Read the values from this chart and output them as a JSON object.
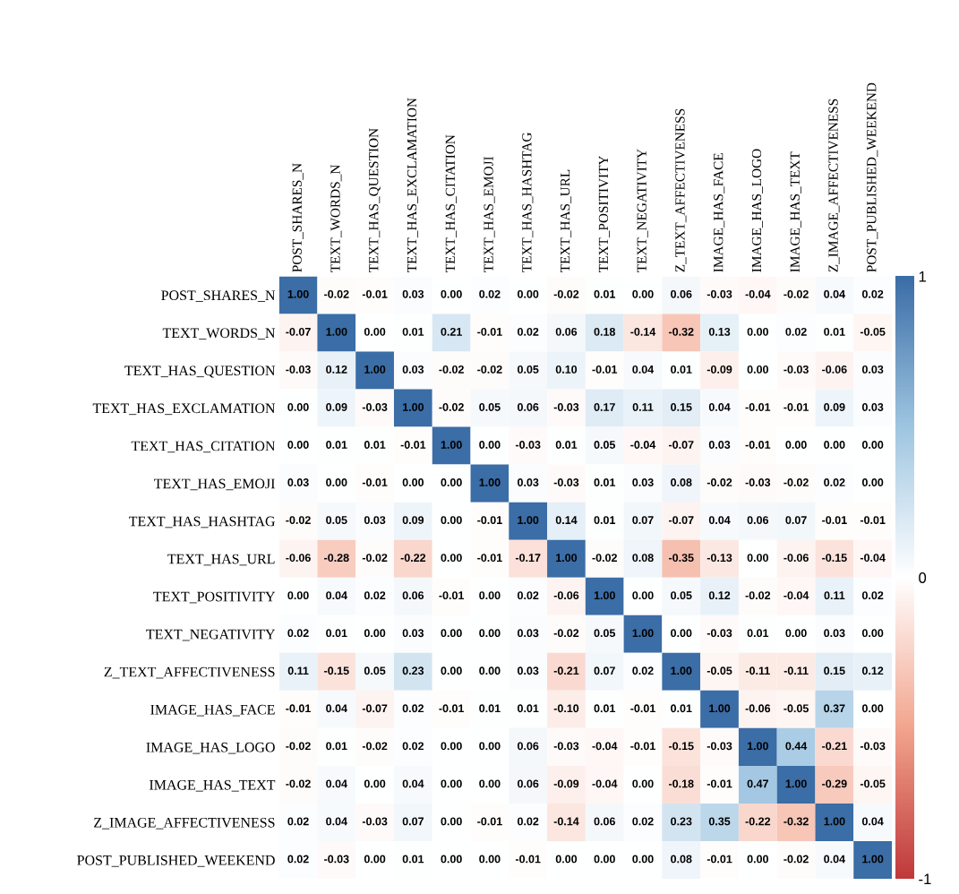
{
  "chart_data": {
    "type": "heatmap",
    "categories": [
      "POST_SHARES_N",
      "TEXT_WORDS_N",
      "TEXT_HAS_QUESTION",
      "TEXT_HAS_EXCLAMATION",
      "TEXT_HAS_CITATION",
      "TEXT_HAS_EMOJI",
      "TEXT_HAS_HASHTAG",
      "TEXT_HAS_URL",
      "TEXT_POSITIVITY",
      "TEXT_NEGATIVITY",
      "Z_TEXT_AFFECTIVENESS",
      "IMAGE_HAS_FACE",
      "IMAGE_HAS_LOGO",
      "IMAGE_HAS_TEXT",
      "Z_IMAGE_AFFECTIVENESS",
      "POST_PUBLISHED_WEEKEND"
    ],
    "y_categories": [
      "POST_SHARES_N",
      "TEXT_WORDS_N",
      "TEXT_HAS_QUESTION",
      "TEXT_HAS_EXCLAMATION",
      "TEXT_HAS_CITATION",
      "TEXT_HAS_EMOJI",
      "TEXT_HAS_HASHTAG",
      "TEXT_HAS_URL",
      "TEXT_POSITIVITY",
      "TEXT_NEGATIVITY",
      "Z_TEXT_AFFECTIVENESS",
      "IMAGE_HAS_FACE",
      "IMAGE_HAS_LOGO",
      "IMAGE_HAS_TEXT",
      "Z_IMAGE_AFFECTIVENESS",
      "POST_PUBLISHED_WEEKEND"
    ],
    "cells": [
      [
        1.0,
        -0.02,
        -0.01,
        0.03,
        0.0,
        0.02,
        0.0,
        -0.02,
        0.01,
        0.0,
        0.06,
        -0.03,
        -0.04,
        -0.02,
        0.04,
        0.02
      ],
      [
        -0.07,
        1.0,
        0.0,
        0.01,
        0.21,
        -0.01,
        0.02,
        0.06,
        0.18,
        -0.14,
        -0.32,
        0.13,
        0.0,
        0.02,
        0.01,
        -0.05
      ],
      [
        -0.03,
        0.12,
        1.0,
        0.03,
        -0.02,
        -0.02,
        0.05,
        0.1,
        -0.01,
        0.04,
        0.01,
        -0.09,
        0.0,
        -0.03,
        -0.06,
        0.03
      ],
      [
        0.0,
        0.09,
        -0.03,
        1.0,
        -0.02,
        0.05,
        0.06,
        -0.03,
        0.17,
        0.11,
        0.15,
        0.04,
        -0.01,
        -0.01,
        0.09,
        0.03
      ],
      [
        0.0,
        0.01,
        0.01,
        -0.01,
        1.0,
        0.0,
        -0.03,
        0.01,
        0.05,
        -0.04,
        -0.07,
        0.03,
        -0.01,
        0.0,
        0.0,
        0.0
      ],
      [
        0.03,
        0.0,
        -0.01,
        0.0,
        0.0,
        1.0,
        0.03,
        -0.03,
        0.01,
        0.03,
        0.08,
        -0.02,
        -0.03,
        -0.02,
        0.02,
        0.0
      ],
      [
        -0.02,
        0.05,
        0.03,
        0.09,
        0.0,
        -0.01,
        1.0,
        0.14,
        0.01,
        0.07,
        -0.07,
        0.04,
        0.06,
        0.07,
        -0.01,
        -0.01
      ],
      [
        -0.06,
        -0.28,
        -0.02,
        -0.22,
        0.0,
        -0.01,
        -0.17,
        1.0,
        -0.02,
        0.08,
        -0.35,
        -0.13,
        0.0,
        -0.06,
        -0.15,
        -0.04
      ],
      [
        0.0,
        0.04,
        0.02,
        0.06,
        -0.01,
        0.0,
        0.02,
        -0.06,
        1.0,
        0.0,
        0.05,
        0.12,
        -0.02,
        -0.04,
        0.11,
        0.02
      ],
      [
        0.02,
        0.01,
        0.0,
        0.03,
        0.0,
        0.0,
        0.03,
        -0.02,
        0.05,
        1.0,
        0.0,
        -0.03,
        0.01,
        0.0,
        0.03,
        0.0
      ],
      [
        0.11,
        -0.15,
        0.05,
        0.23,
        0.0,
        0.0,
        0.03,
        -0.21,
        0.07,
        0.02,
        1.0,
        -0.05,
        -0.11,
        -0.11,
        0.15,
        0.12
      ],
      [
        -0.01,
        0.04,
        -0.07,
        0.02,
        -0.01,
        0.01,
        0.01,
        -0.1,
        0.01,
        -0.01,
        0.01,
        1.0,
        -0.06,
        -0.05,
        0.37,
        0.0
      ],
      [
        -0.02,
        0.01,
        -0.02,
        0.02,
        0.0,
        0.0,
        0.06,
        -0.03,
        -0.04,
        -0.01,
        -0.15,
        -0.03,
        1.0,
        0.44,
        -0.21,
        -0.03
      ],
      [
        -0.02,
        0.04,
        0.0,
        0.04,
        0.0,
        0.0,
        0.06,
        -0.09,
        -0.04,
        0.0,
        -0.18,
        -0.01,
        0.47,
        1.0,
        -0.29,
        -0.05
      ],
      [
        0.02,
        0.04,
        -0.03,
        0.07,
        0.0,
        -0.01,
        0.02,
        -0.14,
        0.06,
        0.02,
        0.23,
        0.35,
        -0.22,
        -0.32,
        1.0,
        0.04
      ],
      [
        0.02,
        -0.03,
        0.0,
        0.01,
        0.0,
        0.0,
        -0.01,
        0.0,
        0.0,
        0.0,
        0.08,
        -0.01,
        0.0,
        -0.02,
        0.04,
        1.0
      ]
    ],
    "cell_labels": [
      [
        "1.00",
        "-0.02",
        "-0.01",
        "0.03",
        "0.00",
        "0.02",
        "0.00",
        "-0.02",
        "0.01",
        "0.00",
        "0.06",
        "-0.03",
        "-0.04",
        "-0.02",
        "0.04",
        "0.02"
      ],
      [
        "-0.07",
        "1.00",
        "0.00",
        "0.01",
        "0.21",
        "-0.01",
        "0.02",
        "0.06",
        "0.18",
        "-0.14",
        "-0.32",
        "0.13",
        "0.00",
        "0.02",
        "0.01",
        "-0.05"
      ],
      [
        "-0.03",
        "0.12",
        "1.00",
        "0.03",
        "-0.02",
        "-0.02",
        "0.05",
        "0.10",
        "-0.01",
        "0.04",
        "0.01",
        "-0.09",
        "0.00",
        "-0.03",
        "-0.06",
        "0.03"
      ],
      [
        "0.00",
        "0.09",
        "-0.03",
        "1.00",
        "-0.02",
        "0.05",
        "0.06",
        "-0.03",
        "0.17",
        "0.11",
        "0.15",
        "0.04",
        "-0.01",
        "-0.01",
        "0.09",
        "0.03"
      ],
      [
        "0.00",
        "0.01",
        "0.01",
        "-0.01",
        "1.00",
        "0.00",
        "-0.03",
        "0.01",
        "0.05",
        "-0.04",
        "-0.07",
        "0.03",
        "-0.01",
        "0.00",
        "0.00",
        "0.00"
      ],
      [
        "0.03",
        "0.00",
        "-0.01",
        "0.00",
        "0.00",
        "1.00",
        "0.03",
        "-0.03",
        "0.01",
        "0.03",
        "0.08",
        "-0.02",
        "-0.03",
        "-0.02",
        "0.02",
        "0.00"
      ],
      [
        "-0.02",
        "0.05",
        "0.03",
        "0.09",
        "0.00",
        "-0.01",
        "1.00",
        "0.14",
        "0.01",
        "0.07",
        "-0.07",
        "0.04",
        "0.06",
        "0.07",
        "-0.01",
        "-0.01"
      ],
      [
        "-0.06",
        "-0.28",
        "-0.02",
        "-0.22",
        "0.00",
        "-0.01",
        "-0.17",
        "1.00",
        "-0.02",
        "0.08",
        "-0.35",
        "-0.13",
        "0.00",
        "-0.06",
        "-0.15",
        "-0.04"
      ],
      [
        "0.00",
        "0.04",
        "0.02",
        "0.06",
        "-0.01",
        "0.00",
        "0.02",
        "-0.06",
        "1.00",
        "0.00",
        "0.05",
        "0.12",
        "-0.02",
        "-0.04",
        "0.11",
        "0.02"
      ],
      [
        "0.02",
        "0.01",
        "0.00",
        "0.03",
        "0.00",
        "0.00",
        "0.03",
        "-0.02",
        "0.05",
        "1.00",
        "0.00",
        "-0.03",
        "0.01",
        "0.00",
        "0.03",
        "0.00"
      ],
      [
        "0.11",
        "-0.15",
        "0.05",
        "0.23",
        "0.00",
        "0.00",
        "0.03",
        "-0.21",
        "0.07",
        "0.02",
        "1.00",
        "-0.05",
        "-0.11",
        "-0.11",
        "0.15",
        "0.12"
      ],
      [
        "-0.01",
        "0.04",
        "-0.07",
        "0.02",
        "-0.01",
        "0.01",
        "0.01",
        "-0.10",
        "0.01",
        "-0.01",
        "0.01",
        "1.00",
        "-0.06",
        "-0.05",
        "0.37",
        "0.00"
      ],
      [
        "-0.02",
        "0.01",
        "-0.02",
        "0.02",
        "0.00",
        "0.00",
        "0.06",
        "-0.03",
        "-0.04",
        "-0.01",
        "-0.15",
        "-0.03",
        "1.00",
        "0.44",
        "-0.21",
        "-0.03"
      ],
      [
        "-0.02",
        "0.04",
        "0.00",
        "0.04",
        "0.00",
        "0.00",
        "0.06",
        "-0.09",
        "-0.04",
        "0.00",
        "-0.18",
        "-0.01",
        "0.47",
        "1.00",
        "-0.29",
        "-0.05"
      ],
      [
        "0.02",
        "0.04",
        "-0.03",
        "0.07",
        "0.00",
        "-0.01",
        "0.02",
        "-0.14",
        "0.06",
        "0.02",
        "0.23",
        "0.35",
        "-0.22",
        "-0.32",
        "1.00",
        "0.04"
      ],
      [
        "0.02",
        "-0.03",
        "0.00",
        "0.01",
        "0.00",
        "0.00",
        "-0.01",
        "0.00",
        "0.00",
        "0.00",
        "0.08",
        "-0.01",
        "0.00",
        "-0.02",
        "0.04",
        "1.00"
      ]
    ],
    "clim": [
      -1,
      1
    ],
    "cticks": [
      {
        "value": 1,
        "label": "1"
      },
      {
        "value": 0,
        "label": "0"
      },
      {
        "value": -1,
        "label": "-1"
      }
    ]
  }
}
